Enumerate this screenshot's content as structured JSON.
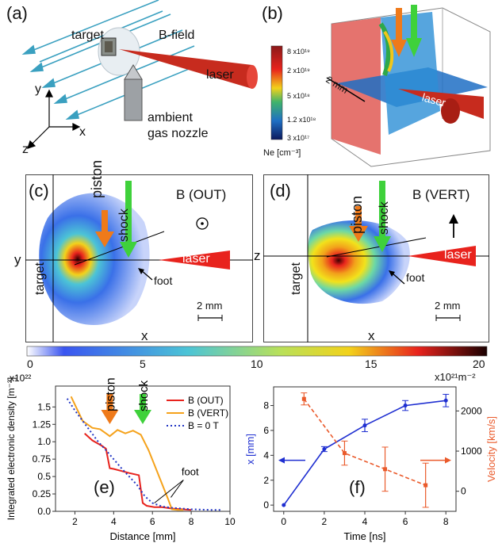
{
  "panels": {
    "a": {
      "label": "(a)",
      "texts": {
        "target": "target",
        "bfield": "B-field",
        "laser": "laser",
        "nozzle1": "ambient",
        "nozzle2": "gas nozzle"
      },
      "axes": {
        "y": "y",
        "x": "x",
        "z": "z"
      }
    },
    "b": {
      "label": "(b)",
      "colorbar_ticks": [
        "8 x10¹⁹",
        "2 x10¹⁹",
        "5 x10¹⁸",
        "1.2 x10¹⁸",
        "3 x10¹⁷"
      ],
      "colorbar_unit": "Ne [cm⁻³]",
      "scale": "2 mm",
      "laser": "laser"
    },
    "c": {
      "label": "(c)",
      "piston": "piston",
      "shock": "shock",
      "field": "B (OUT)",
      "target": "target",
      "laser": "laser",
      "foot": "foot",
      "scale": "2 mm",
      "xaxis": "x",
      "yaxis": "y"
    },
    "d": {
      "label": "(d)",
      "piston": "piston",
      "shock": "shock",
      "field": "B (VERT)",
      "target": "target",
      "laser": "laser",
      "foot": "foot",
      "scale": "2 mm",
      "xaxis": "x",
      "zaxis": "z"
    },
    "e": {
      "label": "(e)"
    },
    "f": {
      "label": "(f)"
    }
  },
  "colorbar": {
    "ticks": [
      "0",
      "5",
      "10",
      "15",
      "20"
    ],
    "unit": "x10²¹m⁻²"
  },
  "chart_data": [
    {
      "type": "line",
      "panel": "e",
      "xlabel": "Distance [mm]",
      "ylabel": "Integrated electronic density [m⁻²]",
      "yscale_label": "x10²²",
      "xlim": [
        1,
        10
      ],
      "ylim": [
        0,
        1.8
      ],
      "xticks": [
        "2",
        "4",
        "6",
        "8",
        "10"
      ],
      "yticks": [
        "0.0",
        "0.25",
        "0.5",
        "0.75",
        "1.0",
        "1.25",
        "1.5"
      ],
      "annotations": {
        "piston": "piston",
        "shock": "shock",
        "foot": "foot"
      },
      "legend_position": "top-right",
      "series": [
        {
          "name": "B (OUT)",
          "color": "#e8231d",
          "style": "solid",
          "x": [
            2.5,
            2.9,
            3.4,
            3.6,
            3.8,
            4.0,
            4.8,
            5.3,
            5.5,
            5.7,
            6.1,
            6.5,
            7.0,
            7.5,
            8.0
          ],
          "y": [
            1.12,
            1.02,
            0.94,
            0.9,
            0.62,
            0.61,
            0.55,
            0.52,
            0.12,
            0.08,
            0.06,
            0.06,
            0.04,
            0.03,
            0.02
          ]
        },
        {
          "name": "B (VERT)",
          "color": "#f5a21b",
          "style": "solid",
          "x": [
            1.8,
            2.4,
            2.9,
            3.3,
            3.6,
            3.8,
            4.2,
            4.6,
            5.0,
            5.4,
            5.8,
            6.2,
            6.8,
            7.0,
            7.3,
            7.6
          ],
          "y": [
            1.65,
            1.3,
            1.2,
            1.18,
            1.12,
            1.08,
            1.17,
            1.12,
            1.16,
            1.1,
            0.88,
            0.6,
            0.18,
            0.03,
            0.02,
            0.02
          ]
        },
        {
          "name": "B = 0 T",
          "color": "#2236c4",
          "style": "dotted",
          "x": [
            1.6,
            2.0,
            2.4,
            2.8,
            3.2,
            3.6,
            4.0,
            4.4,
            4.8,
            5.2,
            5.6,
            6.0,
            6.5,
            7.0,
            7.5,
            8.0,
            9.0,
            9.6
          ],
          "y": [
            1.62,
            1.45,
            1.3,
            1.15,
            1.0,
            0.88,
            0.75,
            0.62,
            0.5,
            0.38,
            0.22,
            0.12,
            0.07,
            0.05,
            0.04,
            0.03,
            0.02,
            0.02
          ]
        }
      ]
    },
    {
      "type": "line",
      "panel": "f",
      "xlabel": "Time [ns]",
      "ylabel_left": "x [mm]",
      "ylabel_right": "Velocity [km/s]",
      "xlim": [
        -0.5,
        8.5
      ],
      "ylim_left": [
        -0.5,
        9.5
      ],
      "ylim_right": [
        -500,
        2600
      ],
      "xticks": [
        "0",
        "2",
        "4",
        "6",
        "8"
      ],
      "yticks_left": [
        "0",
        "2",
        "4",
        "6",
        "8"
      ],
      "yticks_right": [
        "0",
        "1000",
        "2000"
      ],
      "series": [
        {
          "name": "x",
          "axis": "left",
          "color": "#1f2fd1",
          "style": "solid",
          "x": [
            0,
            2,
            4,
            6,
            8
          ],
          "y": [
            0,
            4.5,
            6.4,
            8.0,
            8.4
          ],
          "err": [
            0,
            0.2,
            0.5,
            0.4,
            0.5
          ]
        },
        {
          "name": "Velocity",
          "axis": "right",
          "color": "#ea5a2b",
          "style": "dashed",
          "x": [
            1,
            3,
            5,
            7
          ],
          "y": [
            2300,
            950,
            550,
            150
          ],
          "err": [
            150,
            300,
            550,
            550
          ]
        }
      ]
    }
  ]
}
